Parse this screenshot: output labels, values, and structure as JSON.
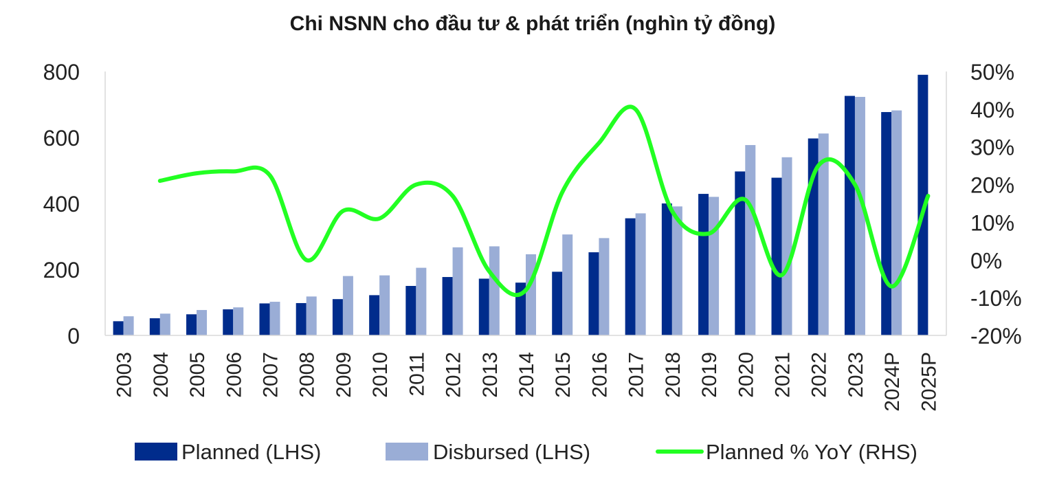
{
  "chart_data": {
    "type": "bar",
    "title": "Chi NSNN cho đầu tư & phát triển (nghìn tỷ đồng)",
    "categories": [
      "2003",
      "2004",
      "2005",
      "2006",
      "2007",
      "2008",
      "2009",
      "2010",
      "2011",
      "2012",
      "2013",
      "2014",
      "2015",
      "2016",
      "2017",
      "2018",
      "2019",
      "2020",
      "2021",
      "2022",
      "2023",
      "2024P",
      "2025P"
    ],
    "series": [
      {
        "name": "Planned (LHS)",
        "type": "bar",
        "axis": "left",
        "color": "#002C8C",
        "values": [
          43,
          52,
          64,
          79,
          97,
          98,
          110,
          122,
          150,
          177,
          172,
          160,
          193,
          252,
          355,
          400,
          429,
          497,
          478,
          597,
          726,
          677,
          790
        ]
      },
      {
        "name": "Disbursed (LHS)",
        "type": "bar",
        "axis": "left",
        "color": "#9AADD6",
        "values": [
          58,
          66,
          77,
          85,
          102,
          118,
          180,
          182,
          205,
          267,
          270,
          246,
          306,
          295,
          370,
          391,
          420,
          577,
          540,
          612,
          723,
          682,
          null
        ]
      },
      {
        "name": "Planned % YoY (RHS)",
        "type": "line",
        "axis": "right",
        "color": "#22FF22",
        "values": [
          null,
          21,
          23,
          23.5,
          22.5,
          0,
          13,
          11,
          20,
          17,
          -3,
          -8,
          18,
          31,
          40,
          13,
          7,
          16,
          -4,
          25,
          20,
          -7,
          17
        ]
      }
    ],
    "y_left": {
      "min": 0,
      "max": 800,
      "ticks": [
        0,
        200,
        400,
        600,
        800
      ],
      "tick_labels": [
        "0",
        "200",
        "400",
        "600",
        "800"
      ]
    },
    "y_right": {
      "min": -20,
      "max": 50,
      "ticks": [
        -20,
        -10,
        0,
        10,
        20,
        30,
        40,
        50
      ],
      "tick_labels": [
        "-20%",
        "-10%",
        "0%",
        "10%",
        "20%",
        "30%",
        "40%",
        "50%"
      ]
    },
    "grid": false,
    "legend_position": "bottom"
  }
}
